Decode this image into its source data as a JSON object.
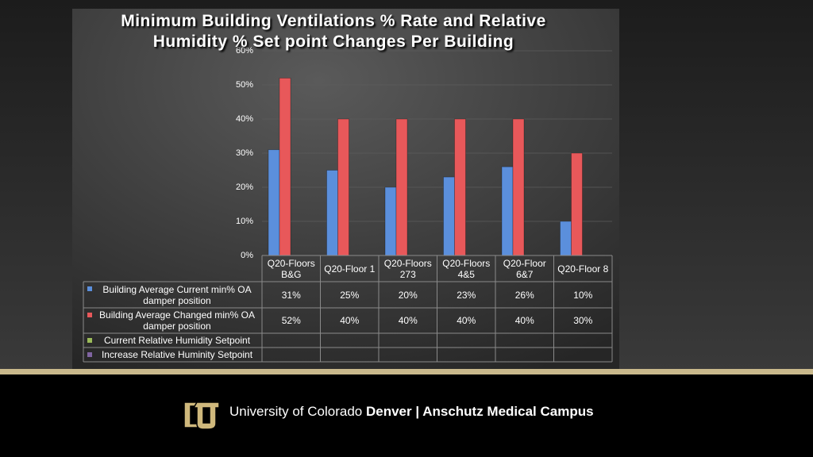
{
  "chart_data": {
    "type": "bar",
    "title": "Minimum Building Ventilations % Rate and Relative Humidity % Set point Changes Per Building",
    "categories": [
      "Q20-Floors B&G",
      "Q20-Floor 1",
      "Q20-Floors 273",
      "Q20-Floors 4&5",
      "Q20-Floor 6&7",
      "Q20-Floor 8"
    ],
    "series": [
      {
        "name": "Building Average Current min% OA damper position",
        "color": "#5b8fdc",
        "values": [
          31,
          25,
          20,
          23,
          26,
          10
        ],
        "value_labels": [
          "31%",
          "25%",
          "20%",
          "23%",
          "26%",
          "10%"
        ]
      },
      {
        "name": "Building Average Changed min% OA damper position",
        "color": "#e8585a",
        "values": [
          52,
          40,
          40,
          40,
          40,
          30
        ],
        "value_labels": [
          "52%",
          "40%",
          "40%",
          "40%",
          "40%",
          "30%"
        ]
      },
      {
        "name": "Current Relative Humidity Setpoint",
        "color": "#9bbb59",
        "values": [
          null,
          null,
          null,
          null,
          null,
          null
        ]
      },
      {
        "name": "Increase Relative Huminity Setpoint",
        "color": "#8064a2",
        "values": [
          null,
          null,
          null,
          null,
          null,
          null
        ]
      }
    ],
    "ylim": [
      0,
      60
    ],
    "yticks": [
      {
        "value": 0,
        "label": "0%"
      },
      {
        "value": 10,
        "label": "10%"
      },
      {
        "value": 20,
        "label": "20%"
      },
      {
        "value": 30,
        "label": "30%"
      },
      {
        "value": 40,
        "label": "40%"
      },
      {
        "value": 50,
        "label": "50%"
      },
      {
        "value": 60,
        "label": "60%"
      }
    ],
    "grid": true
  },
  "footer": {
    "university": "University of Colorado",
    "campus": "Denver | Anschutz Medical Campus"
  }
}
